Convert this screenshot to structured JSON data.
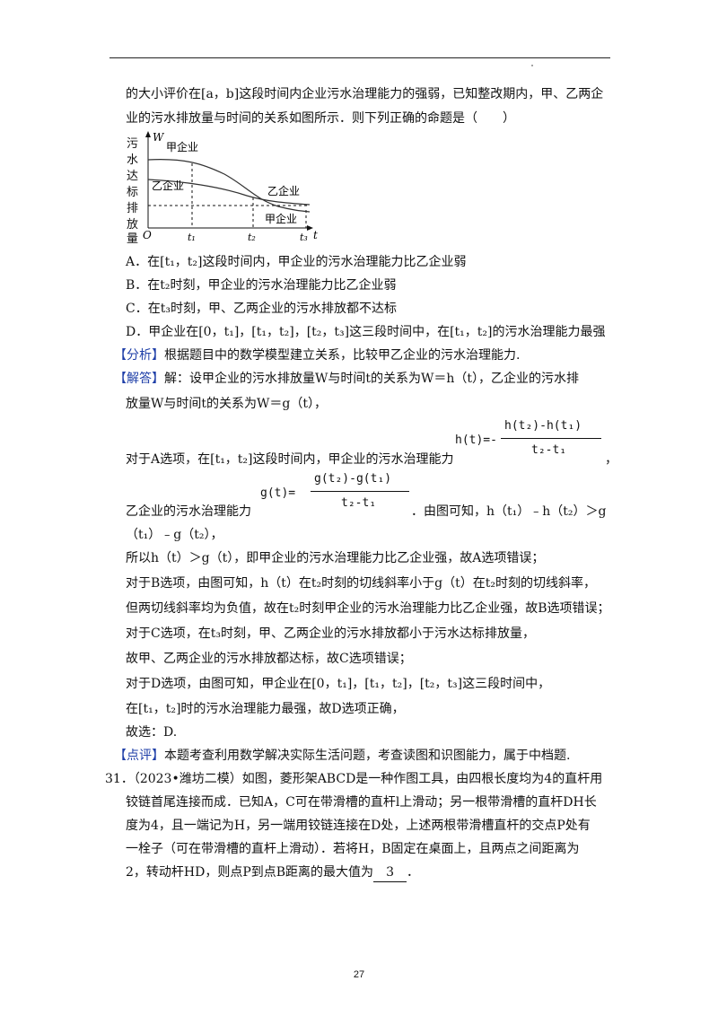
{
  "intro": {
    "line1": "的大小评价在[a，b]这段时间内企业污水治理能力的强弱，已知整改期内，甲、乙两企",
    "line2": "业的污水排放量与时间的关系如图所示．则下列正确的命题是（　　）"
  },
  "figure": {
    "y_label": "W",
    "y_desc_chars": [
      "污",
      "水",
      "达",
      "标",
      "排",
      "放",
      "量"
    ],
    "origin": "O",
    "x_label": "t",
    "ticks": [
      "t₁",
      "t₂",
      "t₃"
    ],
    "curve_jia": "甲企业",
    "curve_yi": "乙企业",
    "curve_yi_right": "乙企业",
    "curve_jia_right": "甲企业"
  },
  "options": {
    "A": "A．在[t₁，t₂]这段时间内，甲企业的污水治理能力比乙企业弱",
    "B": "B．在t₂时刻，甲企业的污水治理能力比乙企业弱",
    "C": "C．在t₃时刻，甲、乙两企业的污水排放都不达标",
    "D": "D．甲企业在[0，t₁]，[t₁，t₂]，[t₂，t₃]这三段时间中，在[t₁，t₂]的污水治理能力最强"
  },
  "analysis": {
    "tag": "【分析】",
    "text": "根据题目中的数学模型建立关系，比较甲乙企业的污水治理能力."
  },
  "solution": {
    "tag": "【解答】",
    "line1": "解：设甲企业的污水排放量W与时间t的关系为W＝h（t），乙企业的污水排",
    "line2": "放量W与时间t的关系为W＝g（t），",
    "line3": "对于A选项，在[t₁，t₂]这段时间内，甲企业的污水治理能力",
    "line3_end": "，",
    "formula_h_lhs": "h(t)=-",
    "formula_h_num": "h(t₂)-h(t₁)",
    "formula_h_den": "t₂-t₁",
    "line4": "乙企业的污水治理能力",
    "formula_g_lhs": "g(t)=",
    "formula_g_num": "g(t₂)-g(t₁)",
    "formula_g_den": "t₂-t₁",
    "line4_end": "．由图可知，h（t₁）﹣h（t₂）＞g",
    "line5": "（t₁）﹣g（t₂），",
    "line6": "所以h（t）＞g（t），即甲企业的污水治理能力比乙企业强，故A选项错误；",
    "line7": "对于B选项，由图可知，h（t）在t₂时刻的切线斜率小于g（t）在t₂时刻的切线斜率，",
    "line8": "但两切线斜率均为负值，故在t₂时刻甲企业的污水治理能力比乙企业强，故B选项错误；",
    "line9": "对于C选项，在t₃时刻，甲、乙两企业的污水排放都小于污水达标排放量，",
    "line10": "故甲、乙两企业的污水排放都达标，故C选项错误；",
    "line11": "对于D选项，由图可知，甲企业在[0，t₁]，[t₁，t₂]，[t₂，t₃]这三段时间中，",
    "line12": "在[t₁，t₂]时的污水治理能力最强，故D选项正确，",
    "line13": "故选：D."
  },
  "comment": {
    "tag": "【点评】",
    "text": "本题考查利用数学解决实际生活问题，考查读图和识图能力，属于中档题."
  },
  "q31": {
    "line1": "31．（2023•潍坊二模）如图，菱形架ABCD是一种作图工具，由四根长度均为4的直杆用",
    "line2": "铰链首尾连接而成．已知A，C可在带滑槽的直杆l上滑动；另一根带滑槽的直杆DH长",
    "line3": "度为4，且一端记为H，另一端用铰链连接在D处，上述两根带滑槽直杆的交点P处有",
    "line4": "一栓子（可在带滑槽的直杆上滑动）．若将H，B固定在桌面上，且两点之间距离为",
    "line5": "2，转动杆HD，则点P到点B距离的最大值为",
    "answer": "3",
    "line5_end": "．"
  },
  "page_number": "27"
}
